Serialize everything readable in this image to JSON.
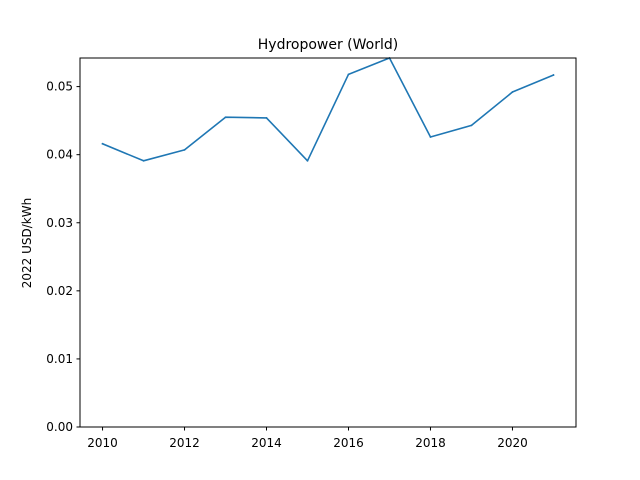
{
  "chart_data": {
    "type": "line",
    "title": "Hydropower (World)",
    "xlabel": "",
    "ylabel": "2022 USD/kWh",
    "x": [
      2010,
      2011,
      2012,
      2013,
      2014,
      2015,
      2016,
      2017,
      2018,
      2019,
      2020,
      2021
    ],
    "series": [
      {
        "values": [
          0.0416,
          0.0391,
          0.0407,
          0.0455,
          0.0454,
          0.0391,
          0.0518,
          0.0542,
          0.0426,
          0.0443,
          0.0492,
          0.0517
        ],
        "color": "#1f77b4"
      }
    ],
    "xlim": [
      2009.45,
      2021.55
    ],
    "ylim": [
      0,
      0.0542
    ],
    "xticks": [
      2010,
      2012,
      2014,
      2016,
      2018,
      2020
    ],
    "xtick_labels": [
      "2010",
      "2012",
      "2014",
      "2016",
      "2018",
      "2020"
    ],
    "yticks": [
      0,
      0.01,
      0.02,
      0.03,
      0.04,
      0.05
    ],
    "ytick_labels": [
      "0.00",
      "0.01",
      "0.02",
      "0.03",
      "0.04",
      "0.05"
    ],
    "grid": false,
    "legend": "none"
  }
}
